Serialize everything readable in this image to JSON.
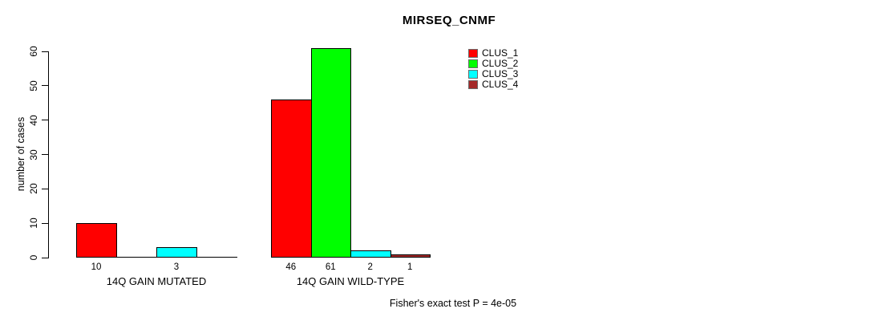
{
  "chart_data": {
    "type": "bar",
    "title": "MIRSEQ_CNMF",
    "ylabel": "number of cases",
    "xlabel": "",
    "groups": [
      "14Q GAIN MUTATED",
      "14Q GAIN WILD-TYPE"
    ],
    "series": [
      {
        "name": "CLUS_1",
        "color": "#ff0000",
        "values": [
          10,
          46
        ]
      },
      {
        "name": "CLUS_2",
        "color": "#00ff00",
        "values": [
          0,
          61
        ]
      },
      {
        "name": "CLUS_3",
        "color": "#00ffff",
        "values": [
          3,
          2
        ]
      },
      {
        "name": "CLUS_4",
        "color": "#a52a2a",
        "values": [
          0,
          1
        ]
      }
    ],
    "bar_value_labels": {
      "14Q GAIN MUTATED": [
        "10",
        "3"
      ],
      "14Q GAIN WILD-TYPE": [
        "46",
        "61",
        "2",
        "1"
      ]
    },
    "ylim": [
      0,
      60
    ],
    "yticks": [
      "0",
      "10",
      "20",
      "30",
      "40",
      "50",
      "60"
    ],
    "grid": false,
    "legend_position": "top-right",
    "legend_labels": [
      "CLUS_1",
      "CLUS_2",
      "CLUS_3",
      "CLUS_4"
    ],
    "footnote": "Fisher's exact test P = 4e-05"
  }
}
